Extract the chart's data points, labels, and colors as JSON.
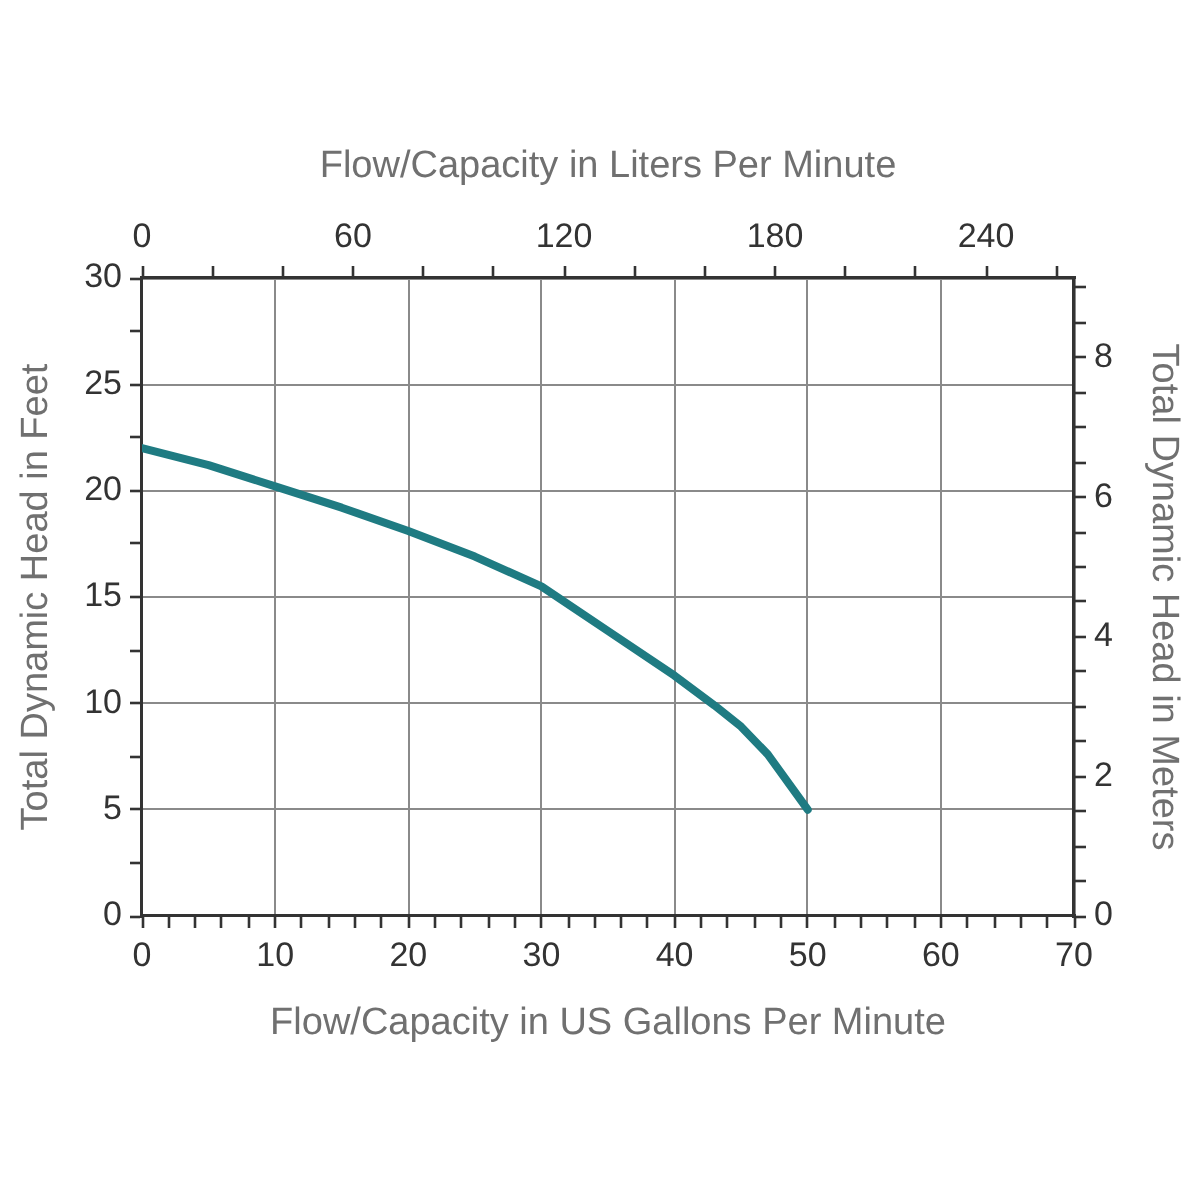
{
  "chart_data": {
    "type": "line",
    "xlabel": "Flow/Capacity in US Gallons Per Minute",
    "x2label": "Flow/Capacity in Liters Per Minute",
    "ylabel": "Total Dynamic Head in Feet",
    "y2label": "Total Dynamic Head in Meters",
    "x": [
      0,
      5,
      10,
      15,
      20,
      25,
      30,
      35,
      40,
      43,
      45,
      47,
      50
    ],
    "series": [
      {
        "color": "#1f7b82",
        "values": [
          22,
          21.2,
          20.2,
          19.2,
          18.1,
          16.9,
          15.5,
          13.4,
          11.3,
          9.9,
          8.9,
          7.6,
          5
        ]
      }
    ],
    "xlim": [
      0,
      70
    ],
    "xticks": [
      0,
      {
        "value": 2,
        "label": null
      },
      {
        "value": 4,
        "label": null
      },
      {
        "value": 6,
        "label": null
      },
      {
        "value": 8,
        "label": null
      },
      10,
      {
        "value": 12,
        "label": null
      },
      {
        "value": 14,
        "label": null
      },
      {
        "value": 16,
        "label": null
      },
      {
        "value": 18,
        "label": null
      },
      20,
      {
        "value": 22,
        "label": null
      },
      {
        "value": 24,
        "label": null
      },
      {
        "value": 26,
        "label": null
      },
      {
        "value": 28,
        "label": null
      },
      30,
      {
        "value": 32,
        "label": null
      },
      {
        "value": 34,
        "label": null
      },
      {
        "value": 36,
        "label": null
      },
      {
        "value": 38,
        "label": null
      },
      40,
      {
        "value": 42,
        "label": null
      },
      {
        "value": 44,
        "label": null
      },
      {
        "value": 46,
        "label": null
      },
      {
        "value": 48,
        "label": null
      },
      50,
      {
        "value": 52,
        "label": null
      },
      {
        "value": 54,
        "label": null
      },
      {
        "value": 56,
        "label": null
      },
      {
        "value": 58,
        "label": null
      },
      60,
      {
        "value": 62,
        "label": null
      },
      {
        "value": 64,
        "label": null
      },
      {
        "value": 66,
        "label": null
      },
      {
        "value": 68,
        "label": null
      },
      70
    ],
    "x2lim": [
      0,
      265
    ],
    "x2ticks": [
      0,
      {
        "value": 20,
        "label": null
      },
      {
        "value": 40,
        "label": null
      },
      60,
      {
        "value": 80,
        "label": null
      },
      {
        "value": 100,
        "label": null
      },
      120,
      {
        "value": 140,
        "label": null
      },
      {
        "value": 160,
        "label": null
      },
      180,
      {
        "value": 200,
        "label": null
      },
      {
        "value": 220,
        "label": null
      },
      240,
      {
        "value": 260,
        "label": null
      }
    ],
    "ylim": [
      0,
      30
    ],
    "yticks": [
      0,
      {
        "value": 2.5,
        "label": null
      },
      5,
      {
        "value": 7.5,
        "label": null
      },
      10,
      {
        "value": 12.5,
        "label": null
      },
      15,
      {
        "value": 17.5,
        "label": null
      },
      20,
      {
        "value": 22.5,
        "label": null
      },
      25,
      {
        "value": 27.5,
        "label": null
      },
      30
    ],
    "y2lim": [
      0,
      9.14
    ],
    "y2ticks": [
      0,
      {
        "value": 0.5,
        "label": null
      },
      {
        "value": 1,
        "label": null
      },
      {
        "value": 1.5,
        "label": null
      },
      2,
      {
        "value": 2.5,
        "label": null
      },
      {
        "value": 3,
        "label": null
      },
      {
        "value": 3.5,
        "label": null
      },
      4,
      {
        "value": 4.5,
        "label": null
      },
      {
        "value": 5,
        "label": null
      },
      {
        "value": 5.5,
        "label": null
      },
      6,
      {
        "value": 6.5,
        "label": null
      },
      {
        "value": 7,
        "label": null
      },
      {
        "value": 7.5,
        "label": null
      },
      8,
      {
        "value": 8.5,
        "label": null
      },
      {
        "value": 9,
        "label": null
      }
    ],
    "grid": true,
    "marker": "none",
    "line_style": "solid"
  }
}
